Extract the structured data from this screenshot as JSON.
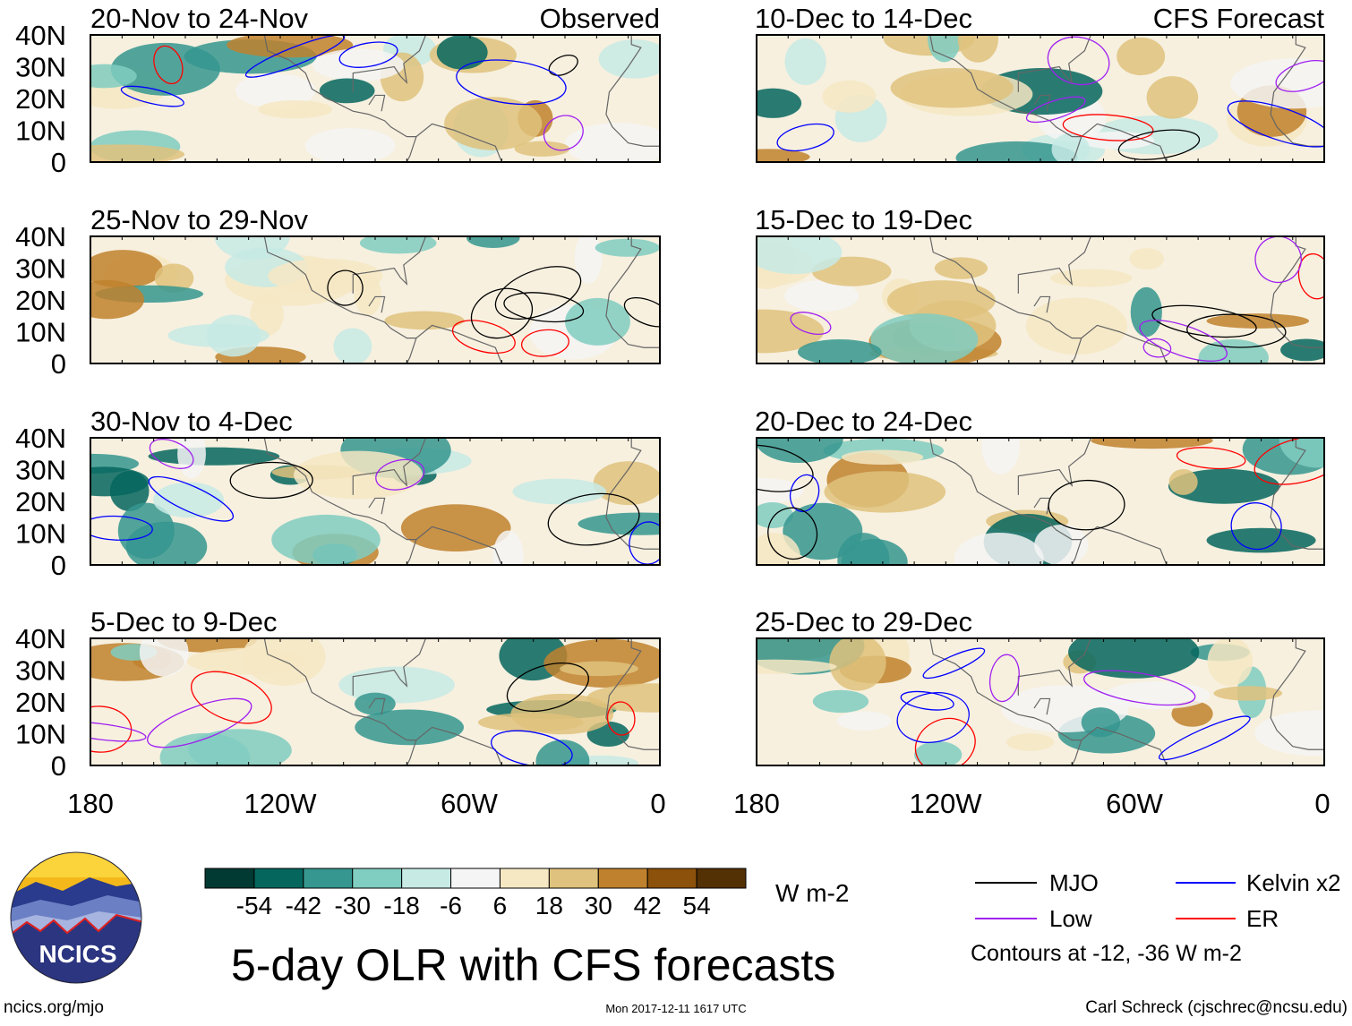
{
  "title": "5-day OLR with CFS forecasts",
  "units": "W m-2",
  "timestamp": "Mon 2017-12-11 1617 UTC",
  "site": "ncics.org/mjo",
  "author": "Carl Schreck (cjschrec@ncsu.edu)",
  "logo_text": "NCICS",
  "lat_labels": [
    "40N",
    "30N",
    "20N",
    "10N",
    "0"
  ],
  "lon_labels": [
    "180",
    "120W",
    "60W",
    "0"
  ],
  "panels_observed": {
    "header": "Observed",
    "titles": [
      "20-Nov to 24-Nov",
      "25-Nov to 29-Nov",
      "30-Nov to 4-Dec",
      "5-Dec to 9-Dec"
    ]
  },
  "panels_forecast": {
    "header": "CFS Forecast",
    "titles": [
      "10-Dec to 14-Dec",
      "15-Dec to 19-Dec",
      "20-Dec to 24-Dec",
      "25-Dec to 29-Dec"
    ]
  },
  "colorbar": {
    "labels": [
      "-54",
      "-42",
      "-30",
      "-18",
      "-6",
      "6",
      "18",
      "30",
      "42",
      "54"
    ],
    "colors": [
      "#013a32",
      "#05665e",
      "#35978f",
      "#80cdc1",
      "#c7eae5",
      "#f5f5f5",
      "#f6e8c3",
      "#dfc27d",
      "#bf812d",
      "#8c510a",
      "#543005"
    ]
  },
  "legend": {
    "items": [
      {
        "label": "MJO",
        "color": "#000000"
      },
      {
        "label": "Kelvin x2",
        "color": "#0000ff"
      },
      {
        "label": "Low",
        "color": "#a020f0"
      },
      {
        "label": "ER",
        "color": "#ff0000"
      }
    ],
    "note": "Contours at -12, -36 W m-2"
  }
}
